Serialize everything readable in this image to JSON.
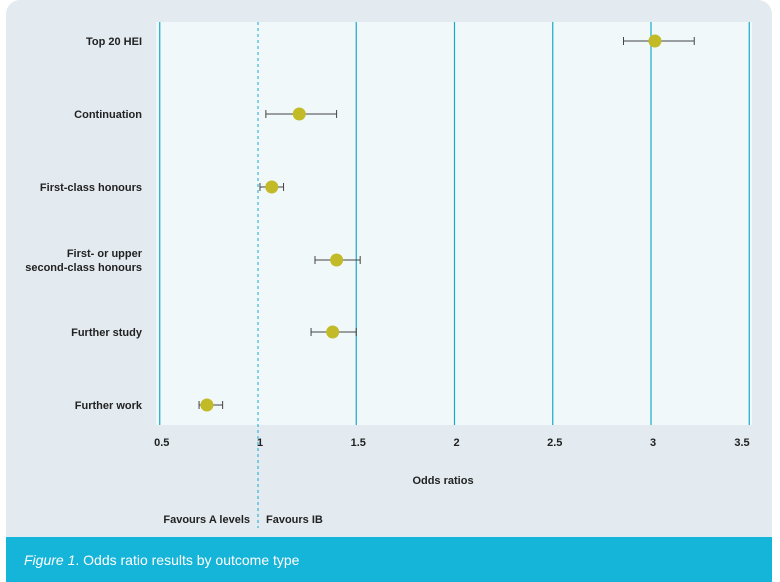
{
  "chart_data": {
    "type": "scatter",
    "subtype": "forest-plot",
    "categories": [
      [
        "Top 20 HEI"
      ],
      [
        "Continuation"
      ],
      [
        "First-class honours"
      ],
      [
        "First- or upper",
        "second-class honours"
      ],
      [
        "Further study"
      ],
      [
        "Further work"
      ]
    ],
    "estimates": [
      3.02,
      1.21,
      1.07,
      1.4,
      1.38,
      0.74
    ],
    "ci_low": [
      2.86,
      1.04,
      1.01,
      1.29,
      1.27,
      0.7
    ],
    "ci_high": [
      3.22,
      1.4,
      1.13,
      1.52,
      1.5,
      0.82
    ],
    "xlim": [
      0.45,
      3.5
    ],
    "xticks": [
      0.5,
      1,
      1.5,
      2,
      2.5,
      3,
      3.5
    ],
    "xtick_labels": [
      "0.5",
      "1",
      "1.5",
      "2",
      "2.5",
      "3",
      "3.5"
    ],
    "reference_line": 1,
    "xlabel": "Odds ratios",
    "left_annotation": "Favours A levels",
    "right_annotation": "Favours IB",
    "grid": true,
    "colors": {
      "marker": "#c2bb27",
      "gridline": "#16a9cf",
      "plot_background": "#f1f8fa",
      "frame_background": "#e3ebf0",
      "caption_background": "#15b4d9",
      "whisker": "#444444"
    }
  },
  "caption": {
    "figure_label": "Figure 1",
    "text": ". Odds ratio results by outcome type"
  }
}
